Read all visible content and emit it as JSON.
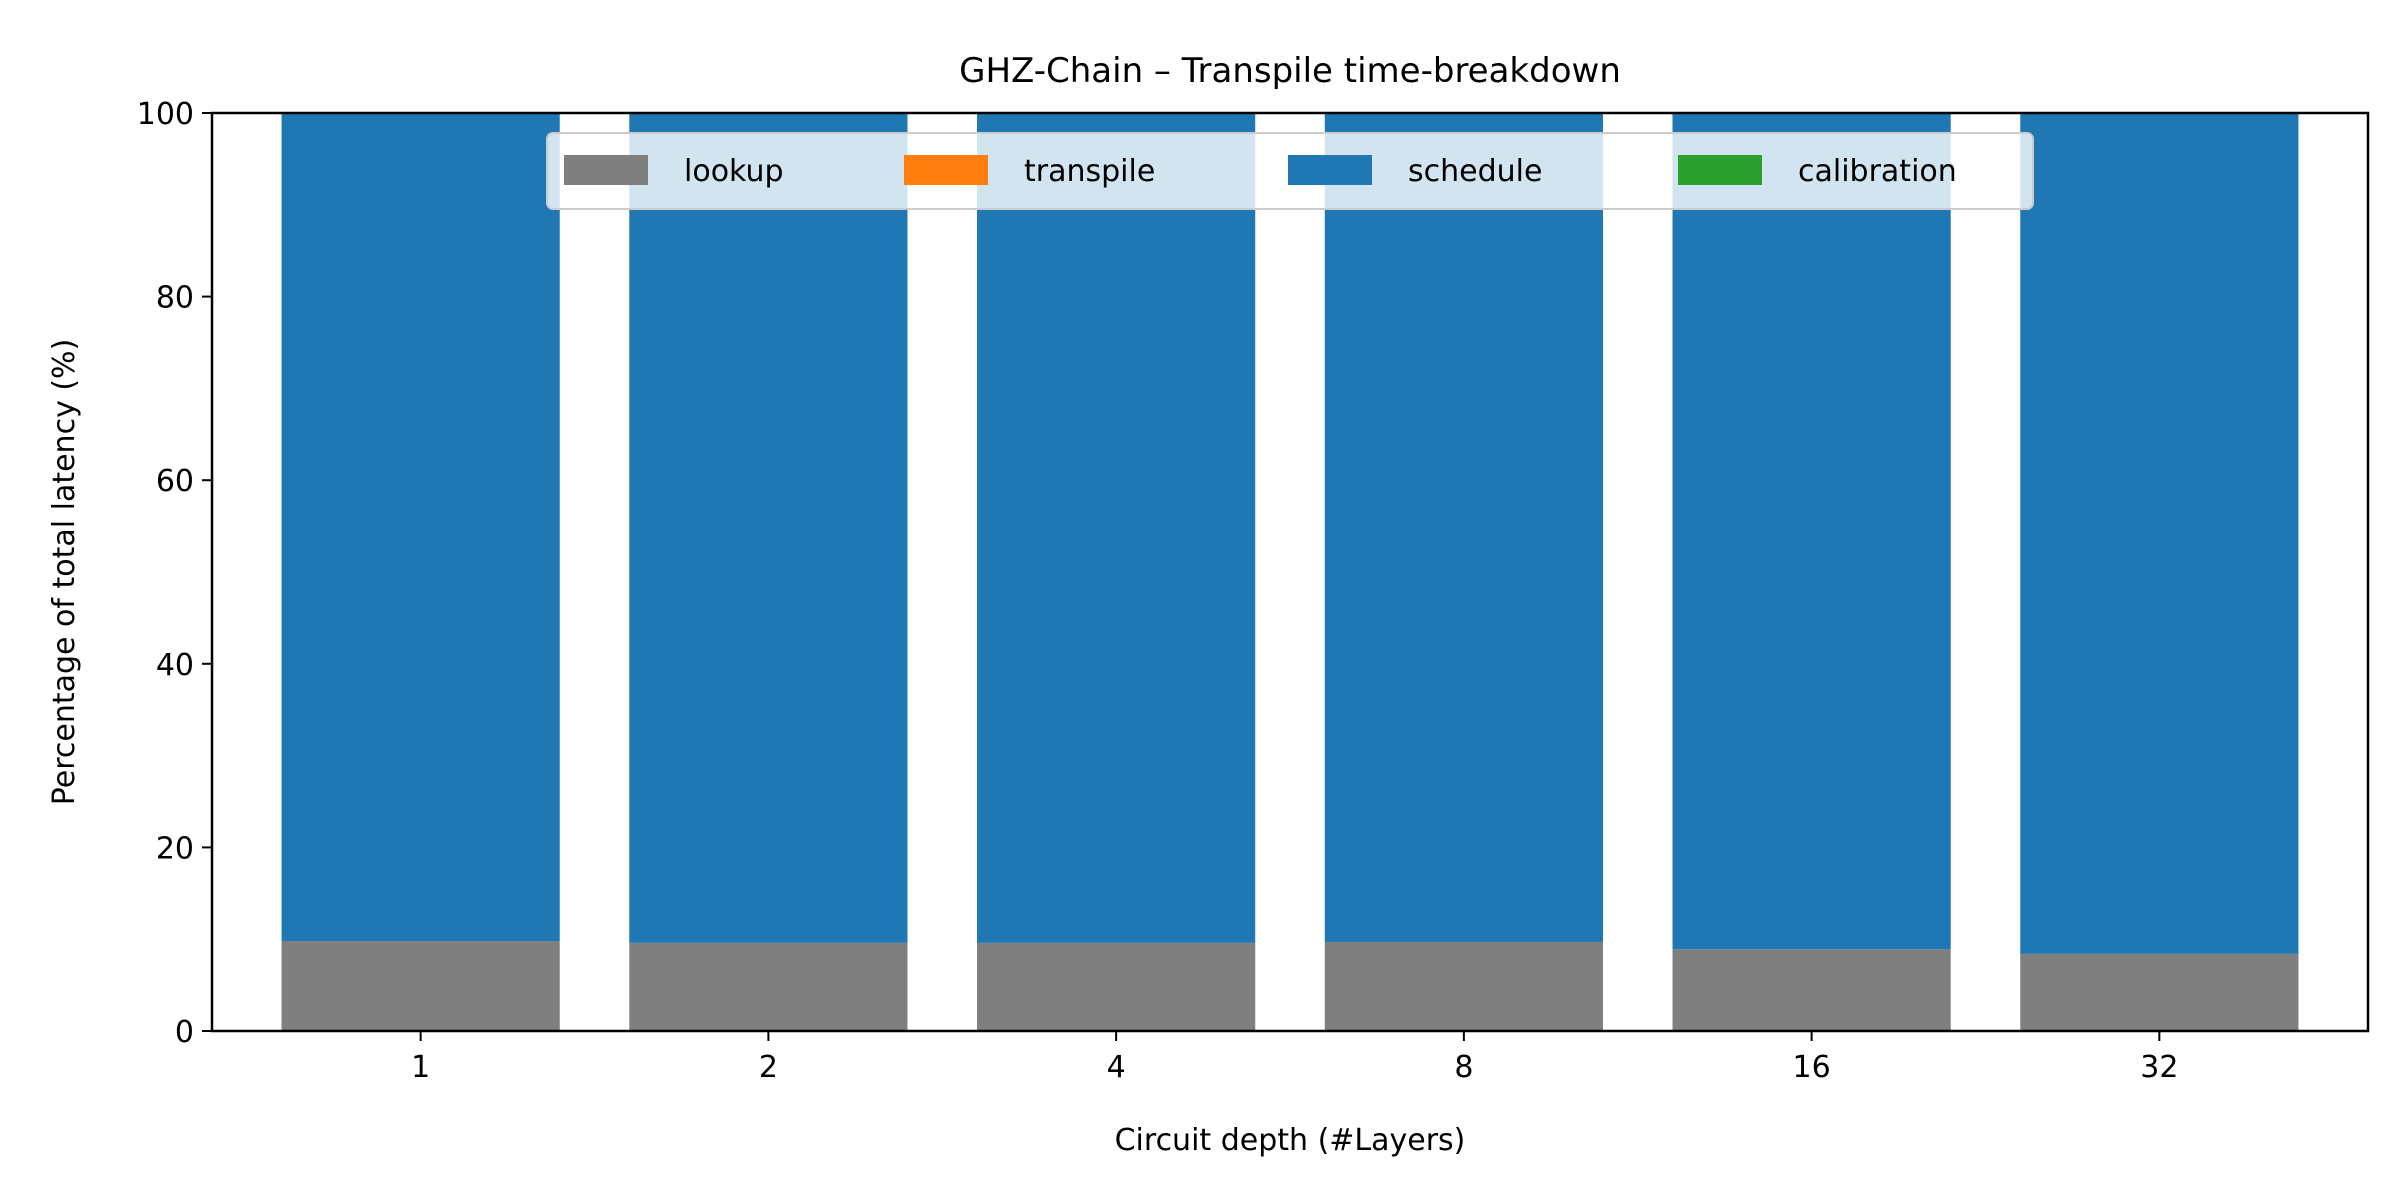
{
  "chart_data": {
    "type": "bar",
    "stacked": true,
    "title": "GHZ-Chain – Transpile time-breakdown",
    "xlabel": "Circuit depth (#Layers)",
    "ylabel": "Percentage of total latency (%)",
    "categories": [
      "1",
      "2",
      "4",
      "8",
      "16",
      "32"
    ],
    "ylim": [
      0,
      100
    ],
    "yticks": [
      0,
      20,
      40,
      60,
      80,
      100
    ],
    "grid": false,
    "legend": {
      "placement": "top-center",
      "columns": 4
    },
    "series": [
      {
        "name": "lookup",
        "color": "#7f7f7f",
        "values": [
          9.8,
          9.6,
          9.6,
          9.7,
          8.9,
          8.4
        ]
      },
      {
        "name": "transpile",
        "color": "#ff7f0e",
        "values": [
          0.0,
          0.0,
          0.0,
          0.0,
          0.0,
          0.0
        ]
      },
      {
        "name": "schedule",
        "color": "#1f77b4",
        "values": [
          90.2,
          90.4,
          90.4,
          90.3,
          91.1,
          91.6
        ]
      },
      {
        "name": "calibration",
        "color": "#2ca02c",
        "values": [
          0.0,
          0.0,
          0.0,
          0.0,
          0.0,
          0.0
        ]
      }
    ]
  }
}
